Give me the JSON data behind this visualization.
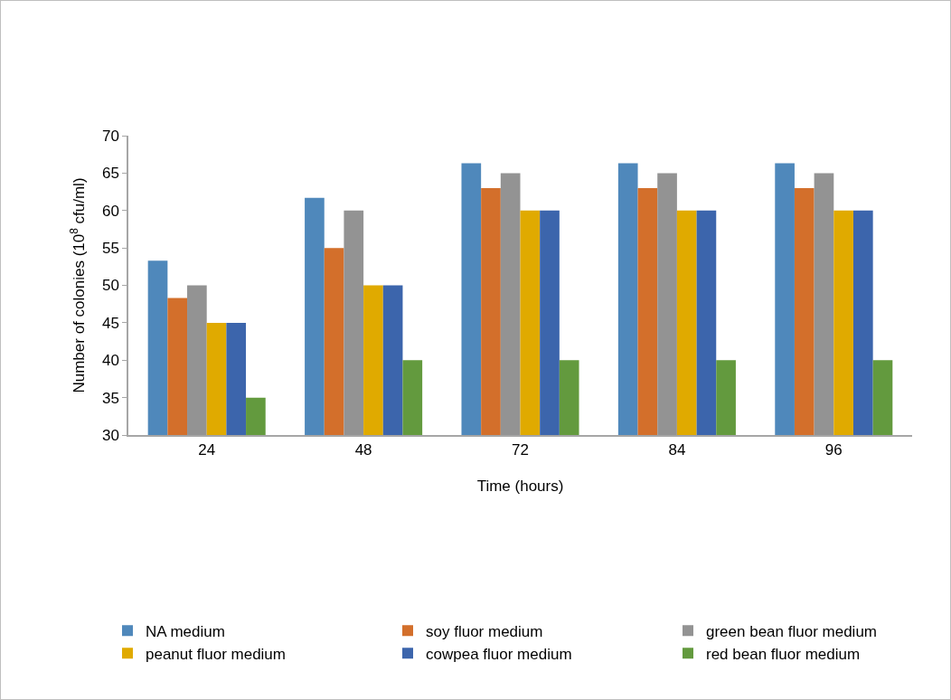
{
  "chart_data": {
    "type": "bar",
    "xlabel": "Time (hours)",
    "ylabel": "Number of colonies (10$^{8}$ cfu/ml)",
    "categories": [
      "24",
      "48",
      "72",
      "84",
      "96"
    ],
    "series": [
      {
        "name": "NA medium",
        "color": "#4f88bb",
        "values": [
          53.3,
          61.7,
          66.3,
          66.3,
          66.3
        ]
      },
      {
        "name": "soy fluor medium",
        "color": "#d36f2b",
        "values": [
          48.3,
          55,
          63,
          63,
          63
        ]
      },
      {
        "name": "green bean fluor medium",
        "color": "#939393",
        "values": [
          50,
          60,
          65,
          65,
          65
        ]
      },
      {
        "name": "peanut fluor medium",
        "color": "#e0aa00",
        "values": [
          45,
          50,
          60,
          60,
          60
        ]
      },
      {
        "name": "cowpea fluor medium",
        "color": "#3c65ac",
        "values": [
          45,
          50,
          60,
          60,
          60
        ]
      },
      {
        "name": "red bean fluor medium",
        "color": "#639a3e",
        "values": [
          35,
          40,
          40,
          40,
          40
        ]
      }
    ],
    "ylim": [
      30,
      70
    ],
    "yticks": [
      30,
      35,
      40,
      45,
      50,
      55,
      60,
      65,
      70
    ],
    "grid": false,
    "legend": "bottom"
  }
}
